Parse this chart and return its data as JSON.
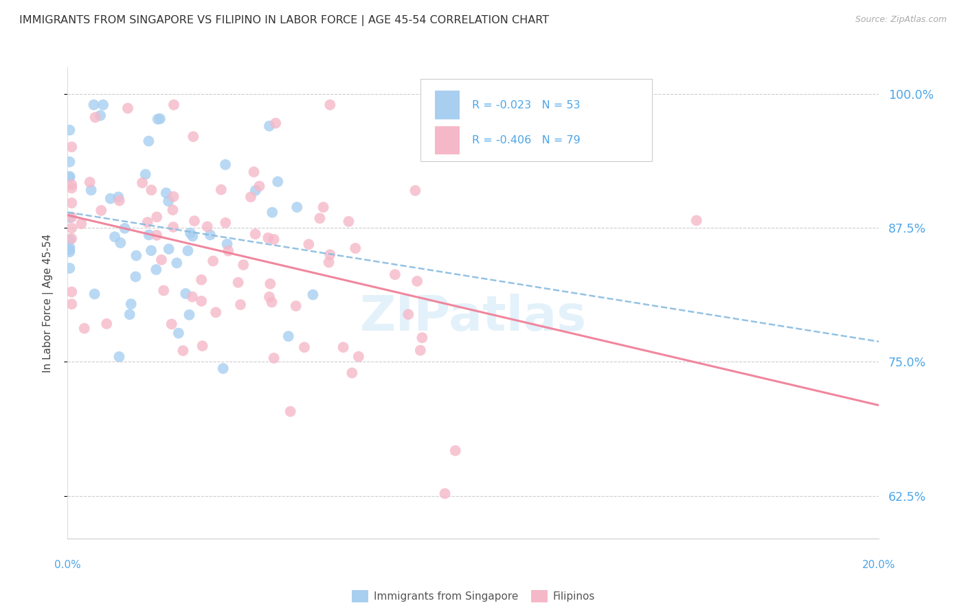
{
  "title": "IMMIGRANTS FROM SINGAPORE VS FILIPINO IN LABOR FORCE | AGE 45-54 CORRELATION CHART",
  "source": "Source: ZipAtlas.com",
  "ylabel": "In Labor Force | Age 45-54",
  "ytick_labels": [
    "62.5%",
    "75.0%",
    "87.5%",
    "100.0%"
  ],
  "ytick_values": [
    0.625,
    0.75,
    0.875,
    1.0
  ],
  "xlim": [
    0.0,
    0.2
  ],
  "ylim": [
    0.585,
    1.025
  ],
  "legend_label1": "Immigrants from Singapore",
  "legend_label2": "Filipinos",
  "blue_color": "#a8cff0",
  "pink_color": "#f5b8c8",
  "blue_line_color": "#88bce0",
  "pink_line_color": "#f08098",
  "watermark": "ZIPatlas",
  "r1_text": "R = -0.023",
  "n1_text": "N = 53",
  "r2_text": "R = -0.406",
  "n2_text": "N = 79"
}
